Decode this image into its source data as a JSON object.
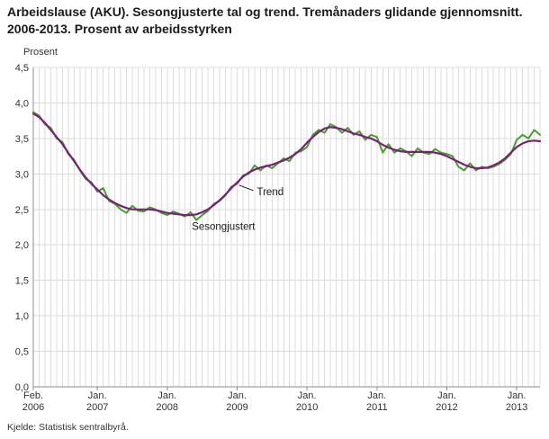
{
  "source": "Kjelde: Statistisk sentralbyrå.",
  "colors": {
    "grid": "#dcdcdc",
    "axis": "#8c8c8c",
    "text": "#333333",
    "annotation_text": "#1a1a1a",
    "seasonally_adjusted": "#44a029",
    "trend": "#7b2077"
  },
  "chart_data": {
    "type": "line",
    "title": "Arbeidslause (AKU). Sesongjusterte tal og trend. Tremånaders glidande gjennomsnitt. 2006-2013. Prosent av arbeidsstyrken",
    "ylabel": "Prosent",
    "xlabel": "",
    "ylim": [
      0,
      4.5
    ],
    "ytick_step": 0.5,
    "ytick_labels": [
      "0,0",
      "0,5",
      "1,0",
      "1,5",
      "2,0",
      "2,5",
      "3,0",
      "3,5",
      "4,0",
      "4,5"
    ],
    "grid": "both",
    "legend_position": "inline-annotations",
    "x_start_month": "2006-02",
    "x_end_month": "2013-05",
    "xticks": [
      {
        "index": 0,
        "line1": "Feb.",
        "line2": "2006"
      },
      {
        "index": 11,
        "line1": "Jan.",
        "line2": "2007"
      },
      {
        "index": 23,
        "line1": "Jan.",
        "line2": "2008"
      },
      {
        "index": 35,
        "line1": "Jan.",
        "line2": "2009"
      },
      {
        "index": 47,
        "line1": "Jan.",
        "line2": "2010"
      },
      {
        "index": 59,
        "line1": "Jan.",
        "line2": "2011"
      },
      {
        "index": 71,
        "line1": "Jan.",
        "line2": "2012"
      },
      {
        "index": 83,
        "line1": "Jan.",
        "line2": "2013"
      }
    ],
    "series": [
      {
        "name": "Sesongjustert",
        "color": "#44a029",
        "stroke_width": 2,
        "values": [
          3.87,
          3.82,
          3.7,
          3.65,
          3.5,
          3.45,
          3.28,
          3.2,
          3.05,
          2.93,
          2.88,
          2.75,
          2.8,
          2.62,
          2.58,
          2.5,
          2.45,
          2.55,
          2.48,
          2.47,
          2.53,
          2.5,
          2.45,
          2.42,
          2.47,
          2.44,
          2.4,
          2.46,
          2.35,
          2.42,
          2.48,
          2.58,
          2.62,
          2.7,
          2.82,
          2.86,
          2.98,
          3.0,
          3.12,
          3.05,
          3.12,
          3.08,
          3.15,
          3.22,
          3.18,
          3.3,
          3.32,
          3.38,
          3.55,
          3.62,
          3.58,
          3.7,
          3.66,
          3.58,
          3.65,
          3.55,
          3.6,
          3.48,
          3.55,
          3.52,
          3.3,
          3.42,
          3.3,
          3.36,
          3.32,
          3.25,
          3.36,
          3.3,
          3.28,
          3.35,
          3.3,
          3.28,
          3.25,
          3.1,
          3.05,
          3.15,
          3.05,
          3.1,
          3.08,
          3.1,
          3.14,
          3.2,
          3.28,
          3.48,
          3.55,
          3.5,
          3.62,
          3.55
        ]
      },
      {
        "name": "Trend",
        "color": "#7b2077",
        "stroke_width": 2.2,
        "values": [
          3.85,
          3.8,
          3.72,
          3.62,
          3.52,
          3.42,
          3.3,
          3.18,
          3.06,
          2.95,
          2.86,
          2.78,
          2.7,
          2.64,
          2.59,
          2.55,
          2.52,
          2.5,
          2.5,
          2.5,
          2.5,
          2.49,
          2.47,
          2.45,
          2.44,
          2.43,
          2.42,
          2.42,
          2.43,
          2.46,
          2.5,
          2.56,
          2.63,
          2.71,
          2.8,
          2.88,
          2.96,
          3.02,
          3.06,
          3.09,
          3.11,
          3.13,
          3.16,
          3.19,
          3.23,
          3.28,
          3.35,
          3.44,
          3.52,
          3.59,
          3.64,
          3.66,
          3.65,
          3.63,
          3.6,
          3.57,
          3.55,
          3.52,
          3.5,
          3.46,
          3.41,
          3.37,
          3.34,
          3.32,
          3.31,
          3.31,
          3.31,
          3.31,
          3.31,
          3.3,
          3.28,
          3.25,
          3.21,
          3.17,
          3.13,
          3.1,
          3.08,
          3.08,
          3.09,
          3.12,
          3.16,
          3.22,
          3.3,
          3.38,
          3.43,
          3.46,
          3.47,
          3.46
        ]
      }
    ],
    "annotations": [
      {
        "text": "Trend",
        "anchor_series": "Trend",
        "anchor_index": 35,
        "text_dx": 22,
        "text_dy": 14,
        "leader": true
      },
      {
        "text": "Sesongjustert",
        "anchor_series": "Sesongjustert",
        "anchor_index": 28,
        "text_dx": -5,
        "text_dy": 11,
        "leader": false
      }
    ]
  }
}
